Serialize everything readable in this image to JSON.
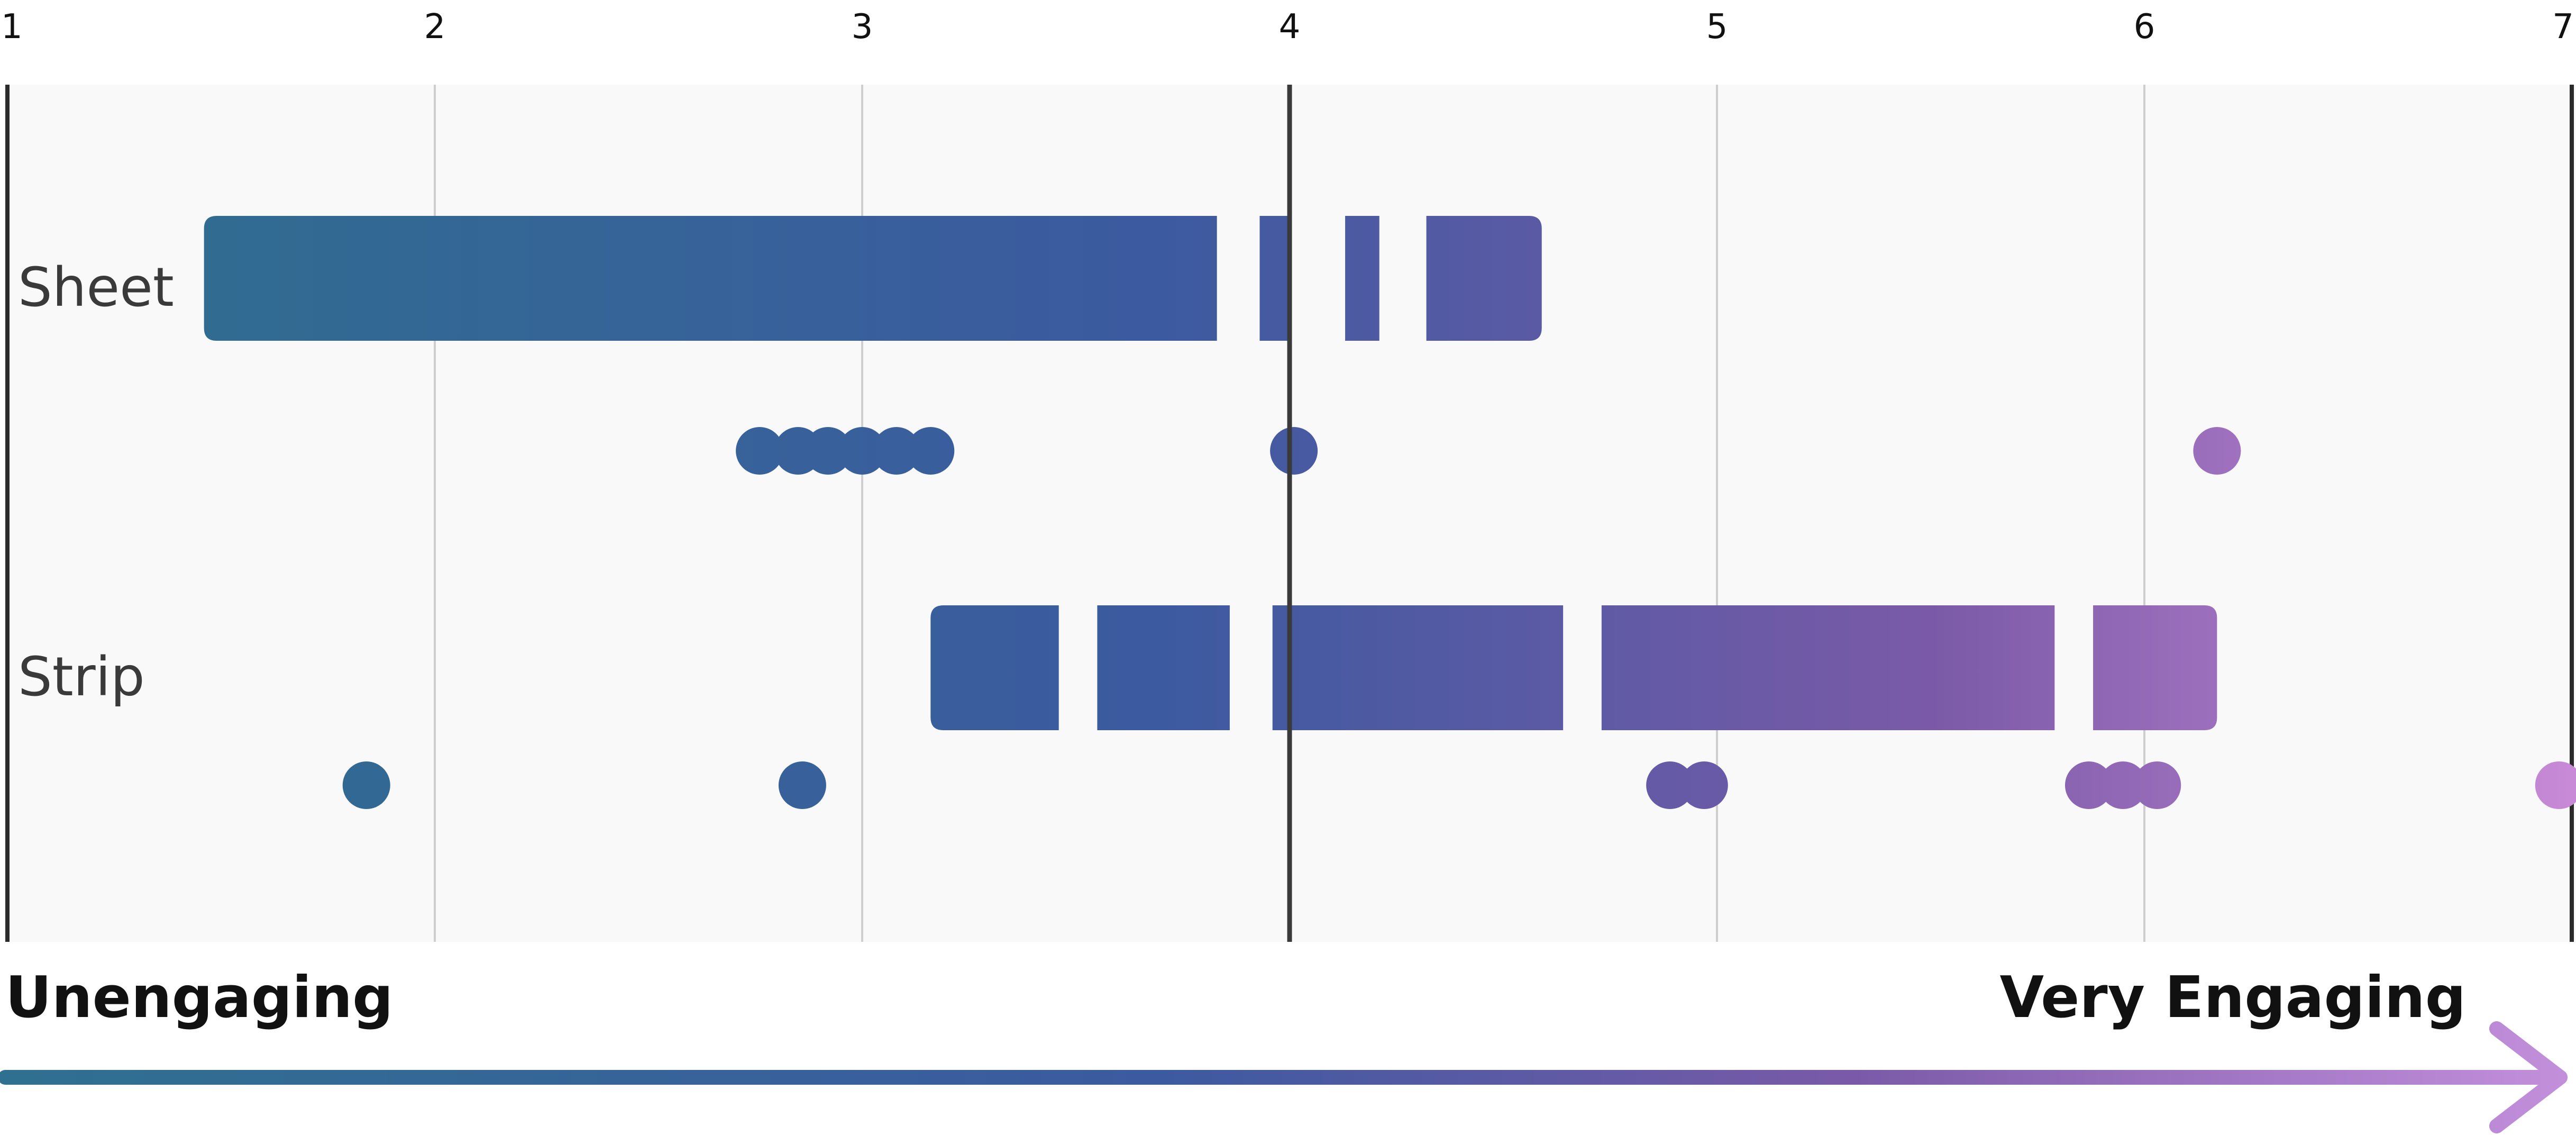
{
  "chart_data": {
    "type": "scatter",
    "title": "",
    "xlim": [
      1,
      7
    ],
    "x_ticks": [
      "1",
      "2",
      "3",
      "4",
      "5",
      "6",
      "7"
    ],
    "reference_line": 4,
    "grid": true,
    "rows": [
      {
        "label": "Sheet",
        "segments": [
          [
            1.46,
            3.83
          ],
          [
            3.93,
            4.0
          ],
          [
            4.13,
            4.21
          ],
          [
            4.32,
            4.59
          ]
        ],
        "points": [
          2.76,
          2.85,
          2.92,
          3.0,
          3.08,
          3.16,
          4.01,
          6.17
        ]
      },
      {
        "label": "Strip",
        "segments": [
          [
            3.16,
            3.46
          ],
          [
            3.55,
            3.86
          ],
          [
            3.96,
            4.64
          ],
          [
            4.73,
            5.79
          ],
          [
            5.88,
            6.17
          ]
        ],
        "points": [
          1.84,
          2.86,
          4.89,
          4.97,
          5.87,
          5.95,
          6.03,
          6.97
        ]
      }
    ],
    "scale_labels": {
      "low": "Unengaging",
      "high": "Very Engaging"
    },
    "colors": {
      "start": "#2e6f8e",
      "mid": "#3c5aa0",
      "end": "#b27fd0"
    }
  }
}
